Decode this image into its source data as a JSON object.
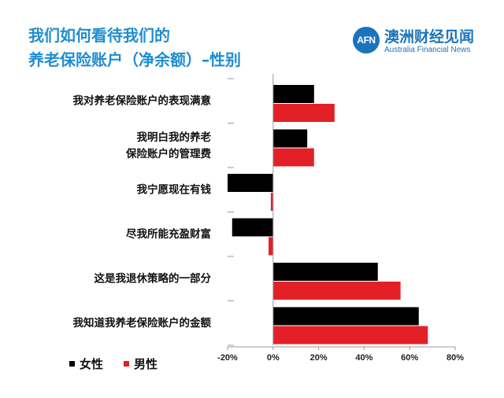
{
  "title": {
    "line1": "我们如何看待我们的",
    "line2": "养老保险账户（净余额）–性别"
  },
  "brand": {
    "logo_text": "AFN",
    "name_cn": "澳洲财经见闻",
    "name_en": "Australia Financial News"
  },
  "colors": {
    "female": "#000000",
    "male": "#e32027",
    "title": "#1f8ed0",
    "brand": "#1b74bb"
  },
  "chart_data": {
    "type": "bar",
    "orientation": "horizontal",
    "categories": [
      "我对养老保险账户的表现满意",
      "我明白我的养老\n保险账户的管理费",
      "我宁愿现在有钱",
      "尽我所能充盈财富",
      "这是我退休策略的一部分",
      "我知道我养老保险账户的金额"
    ],
    "series": [
      {
        "name": "女性",
        "values": [
          18,
          15,
          -20,
          -18,
          46,
          64
        ]
      },
      {
        "name": "男性",
        "values": [
          27,
          18,
          -1,
          -2,
          56,
          68
        ]
      }
    ],
    "xlim": [
      -20,
      80
    ],
    "xticks": [
      "-20%",
      "0%",
      "20%",
      "40%",
      "60%",
      "80%"
    ],
    "legend": "bottom-left",
    "grid": false
  }
}
